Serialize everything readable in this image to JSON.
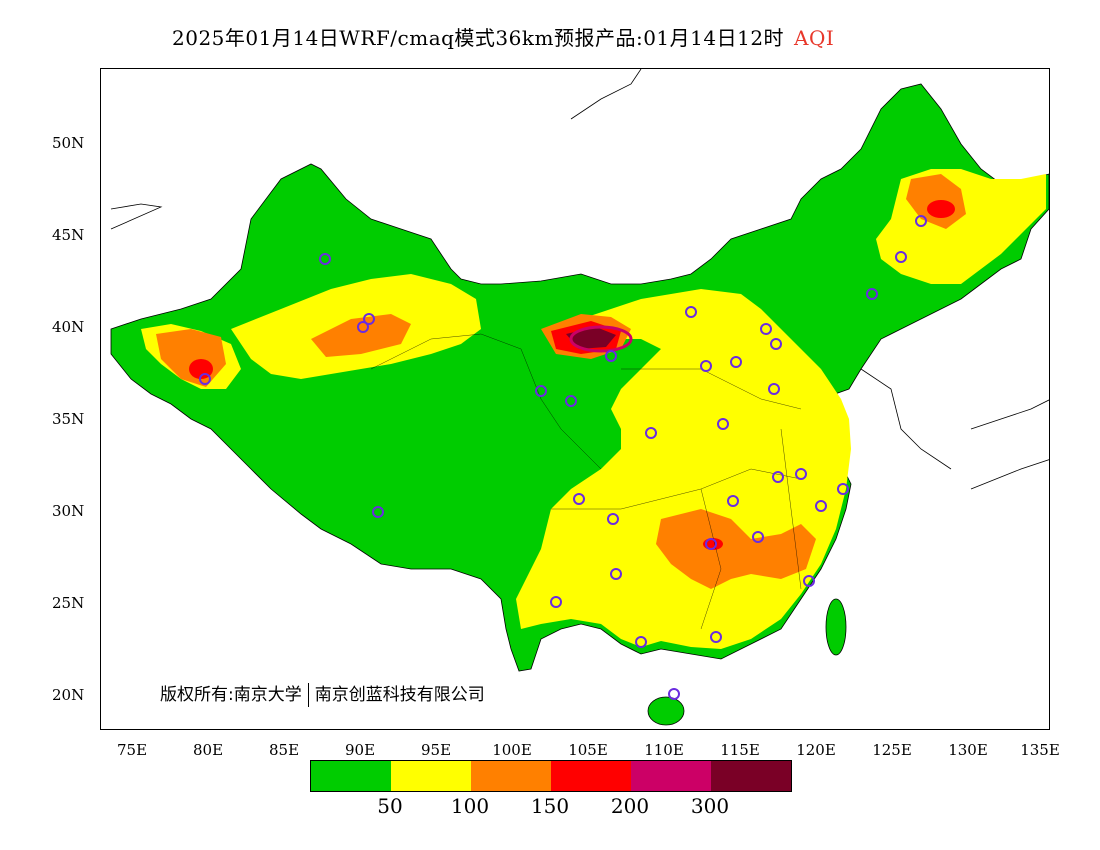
{
  "title": {
    "text": "2025年01月14日WRF/cmaq模式36km预报产品:01月14日12时",
    "product": "AQI",
    "product_color": "#e8382b"
  },
  "axes": {
    "lat_labels": [
      "50N",
      "45N",
      "40N",
      "35N",
      "30N",
      "25N",
      "20N"
    ],
    "lon_labels": [
      "75E",
      "80E",
      "85E",
      "90E",
      "95E",
      "100E",
      "105E",
      "110E",
      "115E",
      "120E",
      "125E",
      "130E",
      "135E"
    ]
  },
  "copyright": {
    "left": "版权所有:南京大学",
    "right": "南京创蓝科技有限公司"
  },
  "legend": {
    "colors": [
      "#00cc00",
      "#ffff00",
      "#ff8000",
      "#ff0000",
      "#cc0066",
      "#7a0026"
    ],
    "thresholds": [
      "50",
      "100",
      "150",
      "200",
      "300"
    ]
  },
  "colors": {
    "good": "#00cc00",
    "moderate": "#ffff00",
    "unhealthy_sensitive": "#ff8000",
    "unhealthy": "#ff0000",
    "very_unhealthy": "#cc0066",
    "hazardous": "#7a0026",
    "station_marker": "#6a2ce0"
  }
}
